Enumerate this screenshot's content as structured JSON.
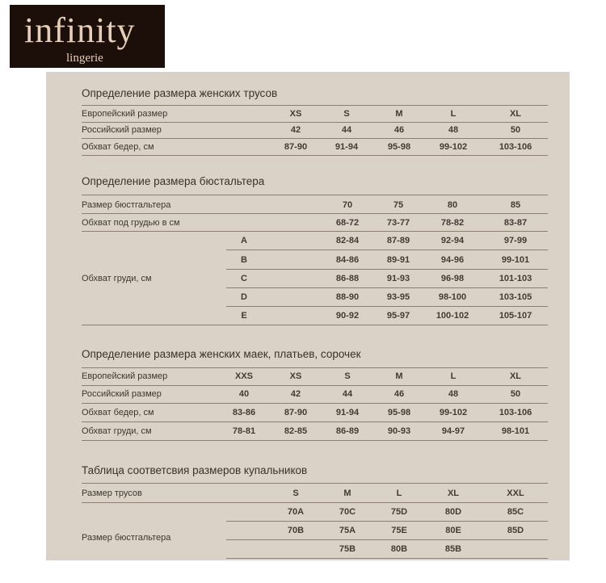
{
  "logo": {
    "brand": "infinity",
    "sub": "lingerie"
  },
  "panties": {
    "title": "Определение размера женских трусов",
    "rows": [
      {
        "label": "Европейский размер",
        "cells": [
          "XS",
          "S",
          "M",
          "L",
          "XL"
        ]
      },
      {
        "label": "Российский размер",
        "cells": [
          "42",
          "44",
          "46",
          "48",
          "50"
        ]
      },
      {
        "label": "Обхват бедер, см",
        "cells": [
          "87-90",
          "91-94",
          "95-98",
          "99-102",
          "103-106"
        ]
      }
    ]
  },
  "bra": {
    "title": "Определение размера бюстальтера",
    "rows": [
      {
        "label": "Размер бюстгальтера",
        "cells": [
          "70",
          "75",
          "80",
          "85"
        ]
      },
      {
        "label": "Обхват под грудью в см",
        "cells": [
          "68-72",
          "73-77",
          "78-82",
          "83-87"
        ]
      }
    ],
    "cup_label": "Обхват груди, см",
    "cups": [
      {
        "cup": "A",
        "cells": [
          "82-84",
          "87-89",
          "92-94",
          "97-99"
        ]
      },
      {
        "cup": "B",
        "cells": [
          "84-86",
          "89-91",
          "94-96",
          "99-101"
        ]
      },
      {
        "cup": "C",
        "cells": [
          "86-88",
          "91-93",
          "96-98",
          "101-103"
        ]
      },
      {
        "cup": "D",
        "cells": [
          "88-90",
          "93-95",
          "98-100",
          "103-105"
        ]
      },
      {
        "cup": "E",
        "cells": [
          "90-92",
          "95-97",
          "100-102",
          "105-107"
        ]
      }
    ]
  },
  "tops": {
    "title": "Определение размера женских маек, платьев, сорочек",
    "rows": [
      {
        "label": "Европейский размер",
        "cells": [
          "XXS",
          "XS",
          "S",
          "M",
          "L",
          "XL"
        ]
      },
      {
        "label": "Российский размер",
        "cells": [
          "40",
          "42",
          "44",
          "46",
          "48",
          "50"
        ]
      },
      {
        "label": "Обхват бедер, см",
        "cells": [
          "83-86",
          "87-90",
          "91-94",
          "95-98",
          "99-102",
          "103-106"
        ]
      },
      {
        "label": "Обхват груди, см",
        "cells": [
          "78-81",
          "82-85",
          "86-89",
          "90-93",
          "94-97",
          "98-101"
        ]
      }
    ]
  },
  "swim": {
    "title": "Таблица соответсвия размеров купальников",
    "panty_label": "Размер трусов",
    "panty_sizes": [
      "S",
      "M",
      "L",
      "XL",
      "XXL"
    ],
    "bra_label": "Размер бюстгальтера",
    "bra_rows": [
      [
        "70A",
        "70C",
        "75D",
        "80D",
        "85C"
      ],
      [
        "70B",
        "75A",
        "75E",
        "80E",
        "85D"
      ],
      [
        "",
        "75B",
        "80B",
        "85B",
        ""
      ]
    ]
  }
}
